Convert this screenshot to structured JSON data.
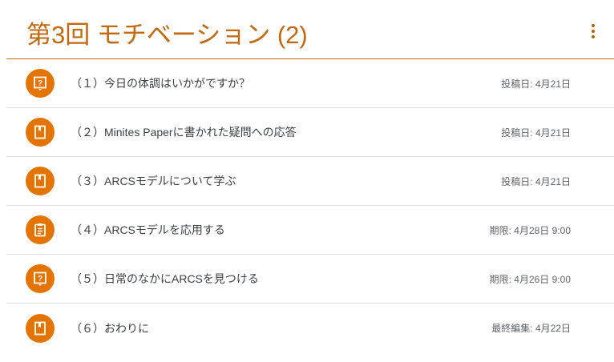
{
  "header": {
    "title": "第3回 モチベーション (2)",
    "menu_icon": "more-vert-icon"
  },
  "colors": {
    "accent": "#c0690f",
    "icon_bg": "#e37400"
  },
  "items": [
    {
      "label": "（１）今日の体調はいかがですか？",
      "date": "投稿日: 4月21日",
      "icon": "question"
    },
    {
      "label": "（２）Minites Paperに書かれた疑問への応答",
      "date": "投稿日: 4月21日",
      "icon": "material"
    },
    {
      "label": "（３）ARCSモデルについて学ぶ",
      "date": "投稿日: 4月21日",
      "icon": "material"
    },
    {
      "label": "（４）ARCSモデルを応用する",
      "date": "期限: 4月28日 9:00",
      "icon": "assignment"
    },
    {
      "label": "（５）日常のなかにARCSを見つける",
      "date": "期限: 4月26日 9:00",
      "icon": "question"
    },
    {
      "label": "（６）おわりに",
      "date": "最終編集: 4月22日",
      "icon": "material"
    }
  ]
}
